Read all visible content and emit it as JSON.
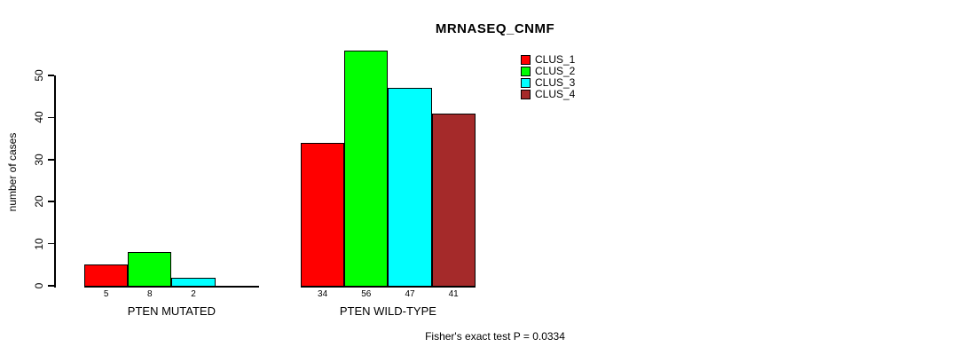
{
  "page": {
    "background": "#FFFFFF"
  },
  "chart_data": {
    "type": "bar",
    "title": "MRNASEQ_CNMF",
    "xlabel": "",
    "ylabel": "number of cases",
    "ylim": [
      0,
      50
    ],
    "yticks": [
      0,
      10,
      20,
      30,
      40,
      50
    ],
    "grid": false,
    "legend_position": "top-right",
    "axis_color": "#000000",
    "bar_value_labels": true,
    "categories": [
      "PTEN MUTATED",
      "PTEN WILD-TYPE"
    ],
    "series": [
      {
        "name": "CLUS_1",
        "color": "#FF0000",
        "values": [
          5,
          34
        ]
      },
      {
        "name": "CLUS_2",
        "color": "#00FF00",
        "values": [
          8,
          56
        ]
      },
      {
        "name": "CLUS_3",
        "color": "#00FFFF",
        "values": [
          2,
          47
        ]
      },
      {
        "name": "CLUS_4",
        "color": "#A52A2A",
        "values": [
          0,
          41
        ]
      }
    ]
  },
  "footer": {
    "note": "Fisher's exact test P = 0.0334"
  }
}
